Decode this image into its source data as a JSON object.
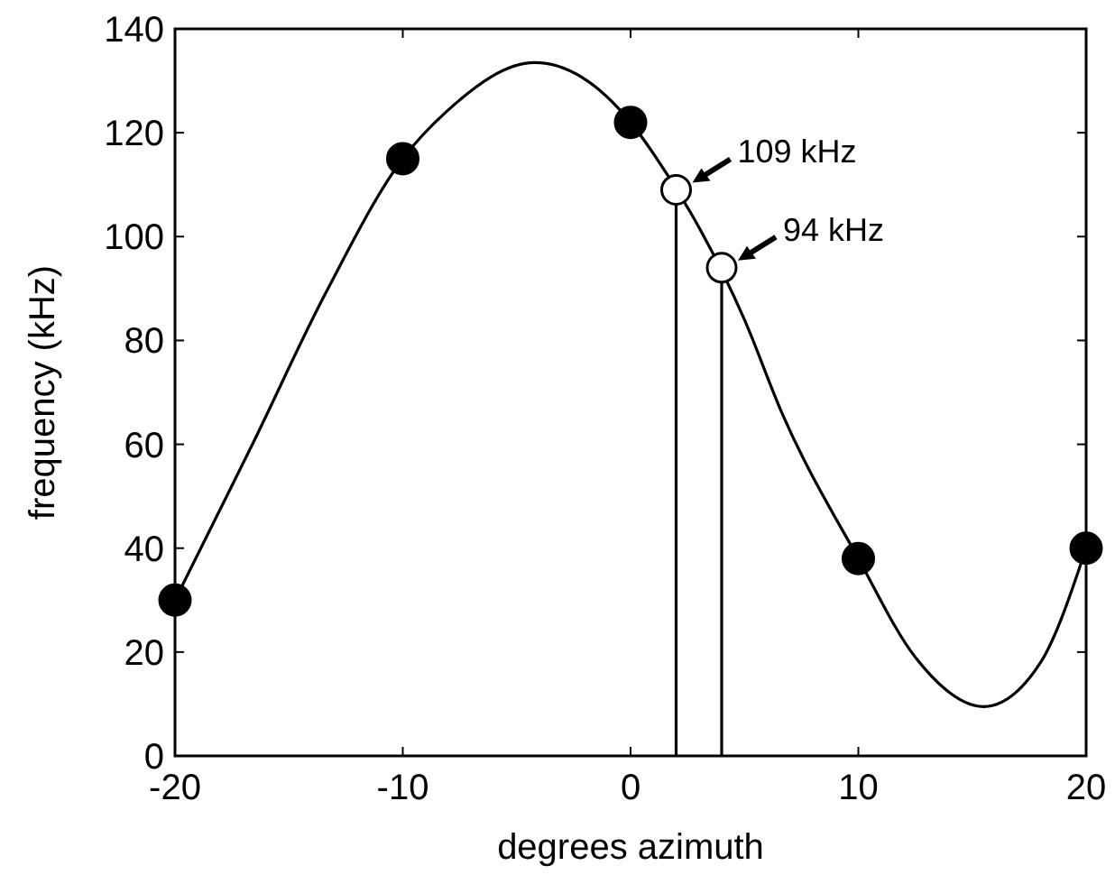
{
  "chart_data": {
    "type": "line",
    "xlabel": "degrees azimuth",
    "ylabel": "frequency (kHz)",
    "xlim": [
      -20,
      20
    ],
    "ylim": [
      0,
      140
    ],
    "xticks": [
      -20,
      -10,
      0,
      10,
      20
    ],
    "yticks": [
      0,
      20,
      40,
      60,
      80,
      100,
      120,
      140
    ],
    "grid": false,
    "series": [
      {
        "color": "#000000",
        "marker": "none",
        "x": [
          -20,
          -16.6,
          -13.4,
          -10,
          -8.1,
          -4.2,
          0,
          1,
          5,
          6.65,
          10,
          12.5,
          15.5,
          18,
          20
        ],
        "values": [
          30,
          60,
          89,
          115,
          124,
          133.5,
          122,
          116,
          84,
          66,
          38,
          19,
          9.5,
          18,
          40
        ]
      },
      {
        "type": "scatter",
        "color": "#000000",
        "marker": "circle",
        "x": [
          -20,
          -10,
          0,
          10,
          20
        ],
        "values": [
          30,
          115,
          122,
          38,
          40
        ]
      },
      {
        "type": "lollipop",
        "color": "#000000",
        "marker": "circle",
        "x": [
          2,
          4
        ],
        "values": [
          109,
          94
        ]
      }
    ],
    "annotations": [
      {
        "text": "109 kHz",
        "x": 2,
        "y": 109
      },
      {
        "text": "94 kHz",
        "x": 4,
        "y": 94
      }
    ]
  }
}
